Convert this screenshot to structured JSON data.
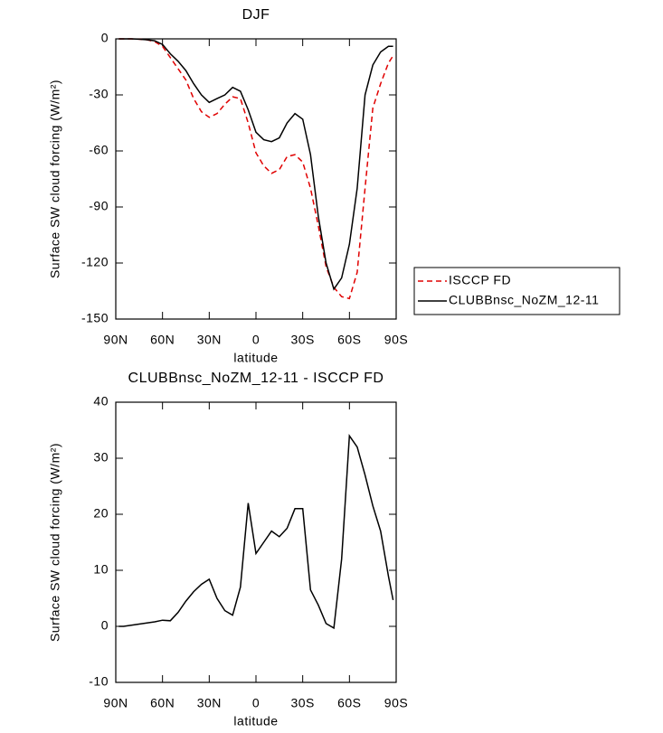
{
  "chart_data": [
    {
      "type": "line",
      "title": "DJF",
      "xlabel": "latitude",
      "ylabel": "Surface SW cloud forcing (W/m²)",
      "x": [
        88,
        85,
        80,
        75,
        70,
        65,
        60,
        55,
        50,
        45,
        40,
        35,
        30,
        25,
        20,
        15,
        10,
        5,
        0,
        -5,
        -10,
        -15,
        -20,
        -25,
        -30,
        -35,
        -40,
        -45,
        -50,
        -55,
        -60,
        -65,
        -70,
        -75,
        -80,
        -85,
        -88
      ],
      "series": [
        {
          "name": "ISCCP FD",
          "color": "#e00000",
          "dashed": true,
          "values": [
            0,
            0,
            0,
            -0.2,
            -0.5,
            -1.5,
            -4,
            -10,
            -16,
            -22,
            -32,
            -39,
            -42,
            -40,
            -35,
            -31,
            -32,
            -45,
            -61,
            -68,
            -72,
            -70,
            -63,
            -62,
            -66,
            -80,
            -100,
            -122,
            -133,
            -138,
            -139,
            -125,
            -80,
            -37,
            -24,
            -13,
            -9
          ]
        },
        {
          "name": "CLUBBnsc_NoZM_12-11",
          "color": "#000000",
          "dashed": false,
          "values": [
            0,
            0,
            0,
            -0.2,
            -0.5,
            -1,
            -3,
            -8,
            -12,
            -17,
            -24,
            -30,
            -34,
            -32,
            -30,
            -26,
            -28,
            -38,
            -50,
            -54,
            -55,
            -53,
            -45,
            -40,
            -43,
            -62,
            -95,
            -120,
            -134,
            -128,
            -110,
            -80,
            -30,
            -14,
            -7,
            -4,
            -4
          ]
        }
      ],
      "xlim": [
        90,
        -90
      ],
      "xticks": [
        {
          "value": 90,
          "label": "90N"
        },
        {
          "value": 60,
          "label": "60N"
        },
        {
          "value": 30,
          "label": "30N"
        },
        0,
        {
          "value": -30,
          "label": "30S"
        },
        {
          "value": -60,
          "label": "60S"
        },
        {
          "value": -90,
          "label": "90S"
        }
      ],
      "ylim": [
        -150,
        0
      ],
      "yticks": [
        0,
        -30,
        -60,
        -90,
        -120,
        -150
      ],
      "legend": "outside-right"
    },
    {
      "type": "line",
      "title": "CLUBBnsc_NoZM_12-11 - ISCCP FD",
      "xlabel": "latitude",
      "ylabel": "Surface SW cloud forcing (W/m²)",
      "x": [
        88,
        85,
        80,
        75,
        70,
        65,
        60,
        55,
        50,
        45,
        40,
        35,
        30,
        25,
        20,
        15,
        10,
        5,
        0,
        -5,
        -10,
        -15,
        -20,
        -25,
        -30,
        -35,
        -40,
        -45,
        -50,
        -55,
        -60,
        -65,
        -70,
        -75,
        -80,
        -85,
        -88
      ],
      "color": "#000000",
      "values": [
        0,
        0,
        0.2,
        0.4,
        0.6,
        0.8,
        1.1,
        1,
        2.5,
        4.5,
        6.2,
        7.5,
        8.4,
        5,
        2.8,
        2,
        7,
        22,
        13,
        15,
        17,
        16,
        17.5,
        21,
        21,
        6.5,
        3.8,
        0.5,
        -0.3,
        12,
        34,
        32,
        27,
        21.5,
        17,
        9,
        4.7
      ],
      "xlim": [
        90,
        -90
      ],
      "xticks": [
        {
          "value": 90,
          "label": "90N"
        },
        {
          "value": 60,
          "label": "60N"
        },
        {
          "value": 30,
          "label": "30N"
        },
        0,
        {
          "value": -30,
          "label": "30S"
        },
        {
          "value": -60,
          "label": "60S"
        },
        {
          "value": -90,
          "label": "90S"
        }
      ],
      "ylim": [
        -10,
        40
      ],
      "yticks": [
        -10,
        0,
        10,
        20,
        30,
        40
      ]
    }
  ]
}
